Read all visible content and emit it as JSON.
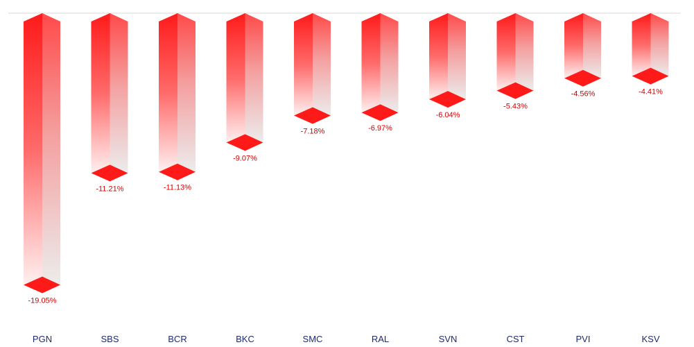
{
  "chart_data": {
    "type": "bar",
    "categories": [
      "PGN",
      "SBS",
      "BCR",
      "BKC",
      "SMC",
      "RAL",
      "SVN",
      "CST",
      "PVI",
      "KSV"
    ],
    "values": [
      -19.05,
      -11.21,
      -11.13,
      -9.07,
      -7.18,
      -6.97,
      -6.04,
      -5.43,
      -4.56,
      -4.41
    ],
    "data_labels": [
      "-19.05%",
      "-11.21%",
      "-11.13%",
      "-9.07%",
      "-7.18%",
      "-6.97%",
      "-6.04%",
      "-5.43%",
      "-4.56%",
      "-4.41%"
    ],
    "title": "",
    "xlabel": "",
    "ylabel": "",
    "ylim": [
      -20,
      0
    ],
    "grid": false,
    "legend": "none",
    "colors": {
      "bar": "#ff1a1a",
      "bar_fade": "#ececec",
      "label": "#d40000",
      "category": "#1f2a6b",
      "baseline": "#d9d9d9"
    }
  }
}
